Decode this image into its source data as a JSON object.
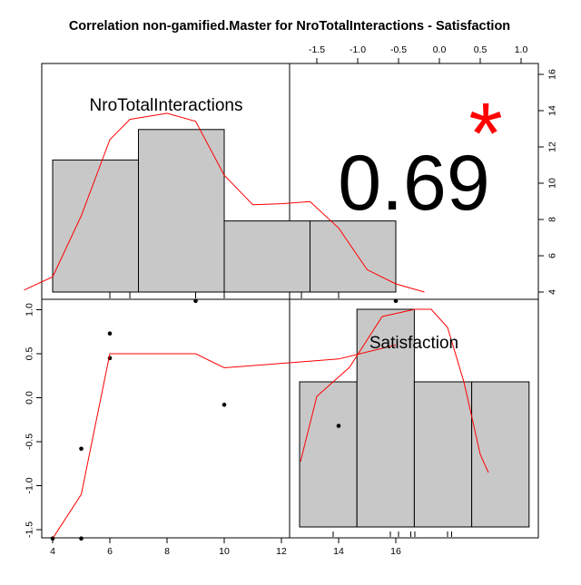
{
  "title": "Correlation non-gamified.Master for NroTotalInteractions - Satisfaction",
  "colors": {
    "bar_fill": "#c8c8c8",
    "density": "#ff0000",
    "lowess": "#ff0000",
    "significance": "#ff0000",
    "axis": "#000000"
  },
  "chart_data": {
    "type": "scatter",
    "variables": [
      "NroTotalInteractions",
      "Satisfaction"
    ],
    "correlation": {
      "value_label": "0.69",
      "significance_mark": "*"
    },
    "diag_nro": {
      "type": "bar",
      "label": "NroTotalInteractions",
      "bins": [
        {
          "from": 4,
          "to": 7,
          "height": 13
        },
        {
          "from": 7,
          "to": 10,
          "height": 16
        },
        {
          "from": 10,
          "to": 13,
          "height": 7
        },
        {
          "from": 13,
          "to": 16,
          "height": 7
        }
      ],
      "rug": [
        6,
        6.7,
        9,
        10,
        12.7,
        14
      ],
      "density_y": [
        [
          3,
          0.2
        ],
        [
          4,
          1.5
        ],
        [
          5,
          7.5
        ],
        [
          6,
          15
        ],
        [
          6.7,
          17
        ],
        [
          8,
          17.6
        ],
        [
          9,
          16.8
        ],
        [
          10,
          11.5
        ],
        [
          11,
          8.6
        ],
        [
          12,
          8.7
        ],
        [
          13,
          8.9
        ],
        [
          14,
          6.3
        ],
        [
          15,
          2.2
        ],
        [
          16,
          0.8
        ],
        [
          17,
          0
        ]
      ]
    },
    "diag_sat": {
      "type": "bar",
      "label": "Satisfaction",
      "bins": [
        {
          "from": -1.6,
          "to": -1.1,
          "height": 2
        },
        {
          "from": -1.1,
          "to": -0.6,
          "height": 3
        },
        {
          "from": -0.6,
          "to": -0.1,
          "height": 2
        },
        {
          "from": -0.1,
          "to": 0.4,
          "height": 2
        }
      ],
      "rug": [
        -1.3,
        -0.6,
        -0.5,
        -0.35,
        -0.3,
        0.1,
        0.15
      ],
      "density_y": [
        [
          -1.7,
          0.9
        ],
        [
          -1.5,
          1.8
        ],
        [
          -1.3,
          2.0
        ],
        [
          -1.1,
          2.2
        ],
        [
          -0.9,
          2.55
        ],
        [
          -0.7,
          2.9
        ],
        [
          -0.5,
          2.95
        ],
        [
          -0.3,
          3.0
        ],
        [
          -0.1,
          3.0
        ],
        [
          0.1,
          2.75
        ],
        [
          0.3,
          2.0
        ],
        [
          0.5,
          1.0
        ],
        [
          0.6,
          0.75
        ]
      ]
    },
    "scatter": {
      "x": [
        4,
        5,
        5,
        6,
        6,
        9,
        10,
        14,
        16
      ],
      "y": [
        -1.6,
        -1.6,
        -0.58,
        0.73,
        0.45,
        1.1,
        -0.08,
        -0.32,
        1.1
      ],
      "lowess": [
        [
          4,
          -1.6
        ],
        [
          5,
          -1.1
        ],
        [
          6,
          0.5
        ],
        [
          9,
          0.5
        ],
        [
          10,
          0.34
        ],
        [
          14,
          0.44
        ],
        [
          16,
          0.6
        ]
      ]
    },
    "axes": {
      "scatter_x": {
        "ticks": [
          4,
          6,
          8,
          10,
          12,
          14,
          16
        ]
      },
      "scatter_y": {
        "ticks": [
          -1.5,
          -1.0,
          -0.5,
          0.0,
          0.5,
          1.0
        ]
      },
      "top_x": {
        "ticks": [
          -1.5,
          -1.0,
          -0.5,
          0.0,
          0.5,
          1.0
        ]
      },
      "right_y": {
        "ticks": [
          4,
          6,
          8,
          10,
          12,
          14,
          16
        ]
      }
    }
  }
}
